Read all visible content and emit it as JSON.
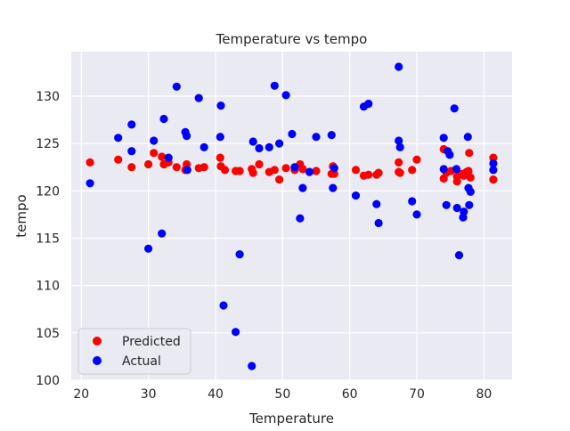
{
  "chart_data": {
    "type": "scatter",
    "title": "Temperature vs tempo",
    "xlabel": "Temperature",
    "ylabel": "tempo",
    "xlim": [
      18.5,
      84.2
    ],
    "ylim": [
      100,
      134.7
    ],
    "x_ticks": [
      20,
      30,
      40,
      50,
      60,
      70,
      80
    ],
    "y_ticks": [
      100,
      105,
      110,
      115,
      120,
      125,
      130
    ],
    "grid": true,
    "legend_position": "lower-left",
    "series": [
      {
        "name": "Predicted",
        "color": "#ff0000",
        "points": [
          [
            21.3,
            123.0
          ],
          [
            25.5,
            123.3
          ],
          [
            27.5,
            122.5
          ],
          [
            30.0,
            122.8
          ],
          [
            30.8,
            124.0
          ],
          [
            32.0,
            123.6
          ],
          [
            32.3,
            122.8
          ],
          [
            33.0,
            123.0
          ],
          [
            34.2,
            122.5
          ],
          [
            35.5,
            122.2
          ],
          [
            35.7,
            122.8
          ],
          [
            37.5,
            122.4
          ],
          [
            38.3,
            122.5
          ],
          [
            40.7,
            123.5
          ],
          [
            40.8,
            122.6
          ],
          [
            41.4,
            122.2
          ],
          [
            43.0,
            122.1
          ],
          [
            43.6,
            122.1
          ],
          [
            45.4,
            122.3
          ],
          [
            45.6,
            121.9
          ],
          [
            46.5,
            122.8
          ],
          [
            48.0,
            122.0
          ],
          [
            48.8,
            122.2
          ],
          [
            49.5,
            121.2
          ],
          [
            50.5,
            122.4
          ],
          [
            51.8,
            122.2
          ],
          [
            52.6,
            122.8
          ],
          [
            53.0,
            122.3
          ],
          [
            55.0,
            122.1
          ],
          [
            57.3,
            121.8
          ],
          [
            57.5,
            122.6
          ],
          [
            57.7,
            121.8
          ],
          [
            60.9,
            122.2
          ],
          [
            62.1,
            121.6
          ],
          [
            62.8,
            121.7
          ],
          [
            64.0,
            121.7
          ],
          [
            64.3,
            121.9
          ],
          [
            67.3,
            123.0
          ],
          [
            67.3,
            122.0
          ],
          [
            67.5,
            121.9
          ],
          [
            69.3,
            122.2
          ],
          [
            70.0,
            123.3
          ],
          [
            74.0,
            124.4
          ],
          [
            74.0,
            121.3
          ],
          [
            74.4,
            121.9
          ],
          [
            75.1,
            122.1
          ],
          [
            76.0,
            121.5
          ],
          [
            76.0,
            121.0
          ],
          [
            76.7,
            121.8
          ],
          [
            77.0,
            121.6
          ],
          [
            77.4,
            122.0
          ],
          [
            77.7,
            122.1
          ],
          [
            77.8,
            124.0
          ],
          [
            78.0,
            121.4
          ],
          [
            81.4,
            123.5
          ],
          [
            81.4,
            121.2
          ]
        ]
      },
      {
        "name": "Actual",
        "color": "#0000ff",
        "points": [
          [
            21.3,
            120.8
          ],
          [
            25.5,
            125.6
          ],
          [
            27.5,
            124.2
          ],
          [
            27.5,
            127.0
          ],
          [
            30.0,
            113.9
          ],
          [
            30.8,
            125.3
          ],
          [
            32.0,
            115.5
          ],
          [
            32.3,
            127.6
          ],
          [
            33.0,
            123.5
          ],
          [
            34.2,
            131.0
          ],
          [
            35.5,
            126.2
          ],
          [
            35.7,
            125.8
          ],
          [
            35.8,
            122.2
          ],
          [
            37.5,
            129.8
          ],
          [
            38.3,
            124.6
          ],
          [
            40.7,
            125.7
          ],
          [
            40.8,
            129.0
          ],
          [
            41.2,
            107.9
          ],
          [
            43.0,
            105.1
          ],
          [
            43.6,
            113.3
          ],
          [
            45.4,
            101.5
          ],
          [
            45.6,
            125.2
          ],
          [
            46.5,
            124.5
          ],
          [
            48.0,
            124.6
          ],
          [
            48.8,
            131.1
          ],
          [
            49.5,
            125.0
          ],
          [
            50.5,
            130.1
          ],
          [
            51.4,
            126.0
          ],
          [
            51.8,
            122.5
          ],
          [
            52.6,
            117.1
          ],
          [
            53.0,
            120.3
          ],
          [
            54.0,
            122.0
          ],
          [
            55.0,
            125.7
          ],
          [
            57.3,
            125.9
          ],
          [
            57.5,
            120.3
          ],
          [
            57.7,
            122.4
          ],
          [
            60.9,
            119.5
          ],
          [
            62.1,
            128.9
          ],
          [
            62.8,
            129.2
          ],
          [
            64.0,
            118.6
          ],
          [
            64.3,
            116.6
          ],
          [
            67.3,
            133.1
          ],
          [
            67.3,
            125.3
          ],
          [
            67.5,
            124.6
          ],
          [
            69.3,
            118.9
          ],
          [
            70.0,
            117.5
          ],
          [
            74.0,
            125.6
          ],
          [
            74.0,
            122.3
          ],
          [
            74.4,
            118.5
          ],
          [
            74.6,
            124.2
          ],
          [
            74.9,
            123.8
          ],
          [
            75.6,
            128.7
          ],
          [
            75.9,
            122.3
          ],
          [
            76.0,
            118.2
          ],
          [
            76.3,
            113.2
          ],
          [
            76.9,
            117.2
          ],
          [
            77.0,
            117.8
          ],
          [
            77.6,
            125.7
          ],
          [
            77.7,
            120.3
          ],
          [
            77.8,
            118.5
          ],
          [
            78.0,
            119.9
          ],
          [
            81.4,
            122.9
          ],
          [
            81.4,
            122.2
          ]
        ]
      }
    ]
  }
}
